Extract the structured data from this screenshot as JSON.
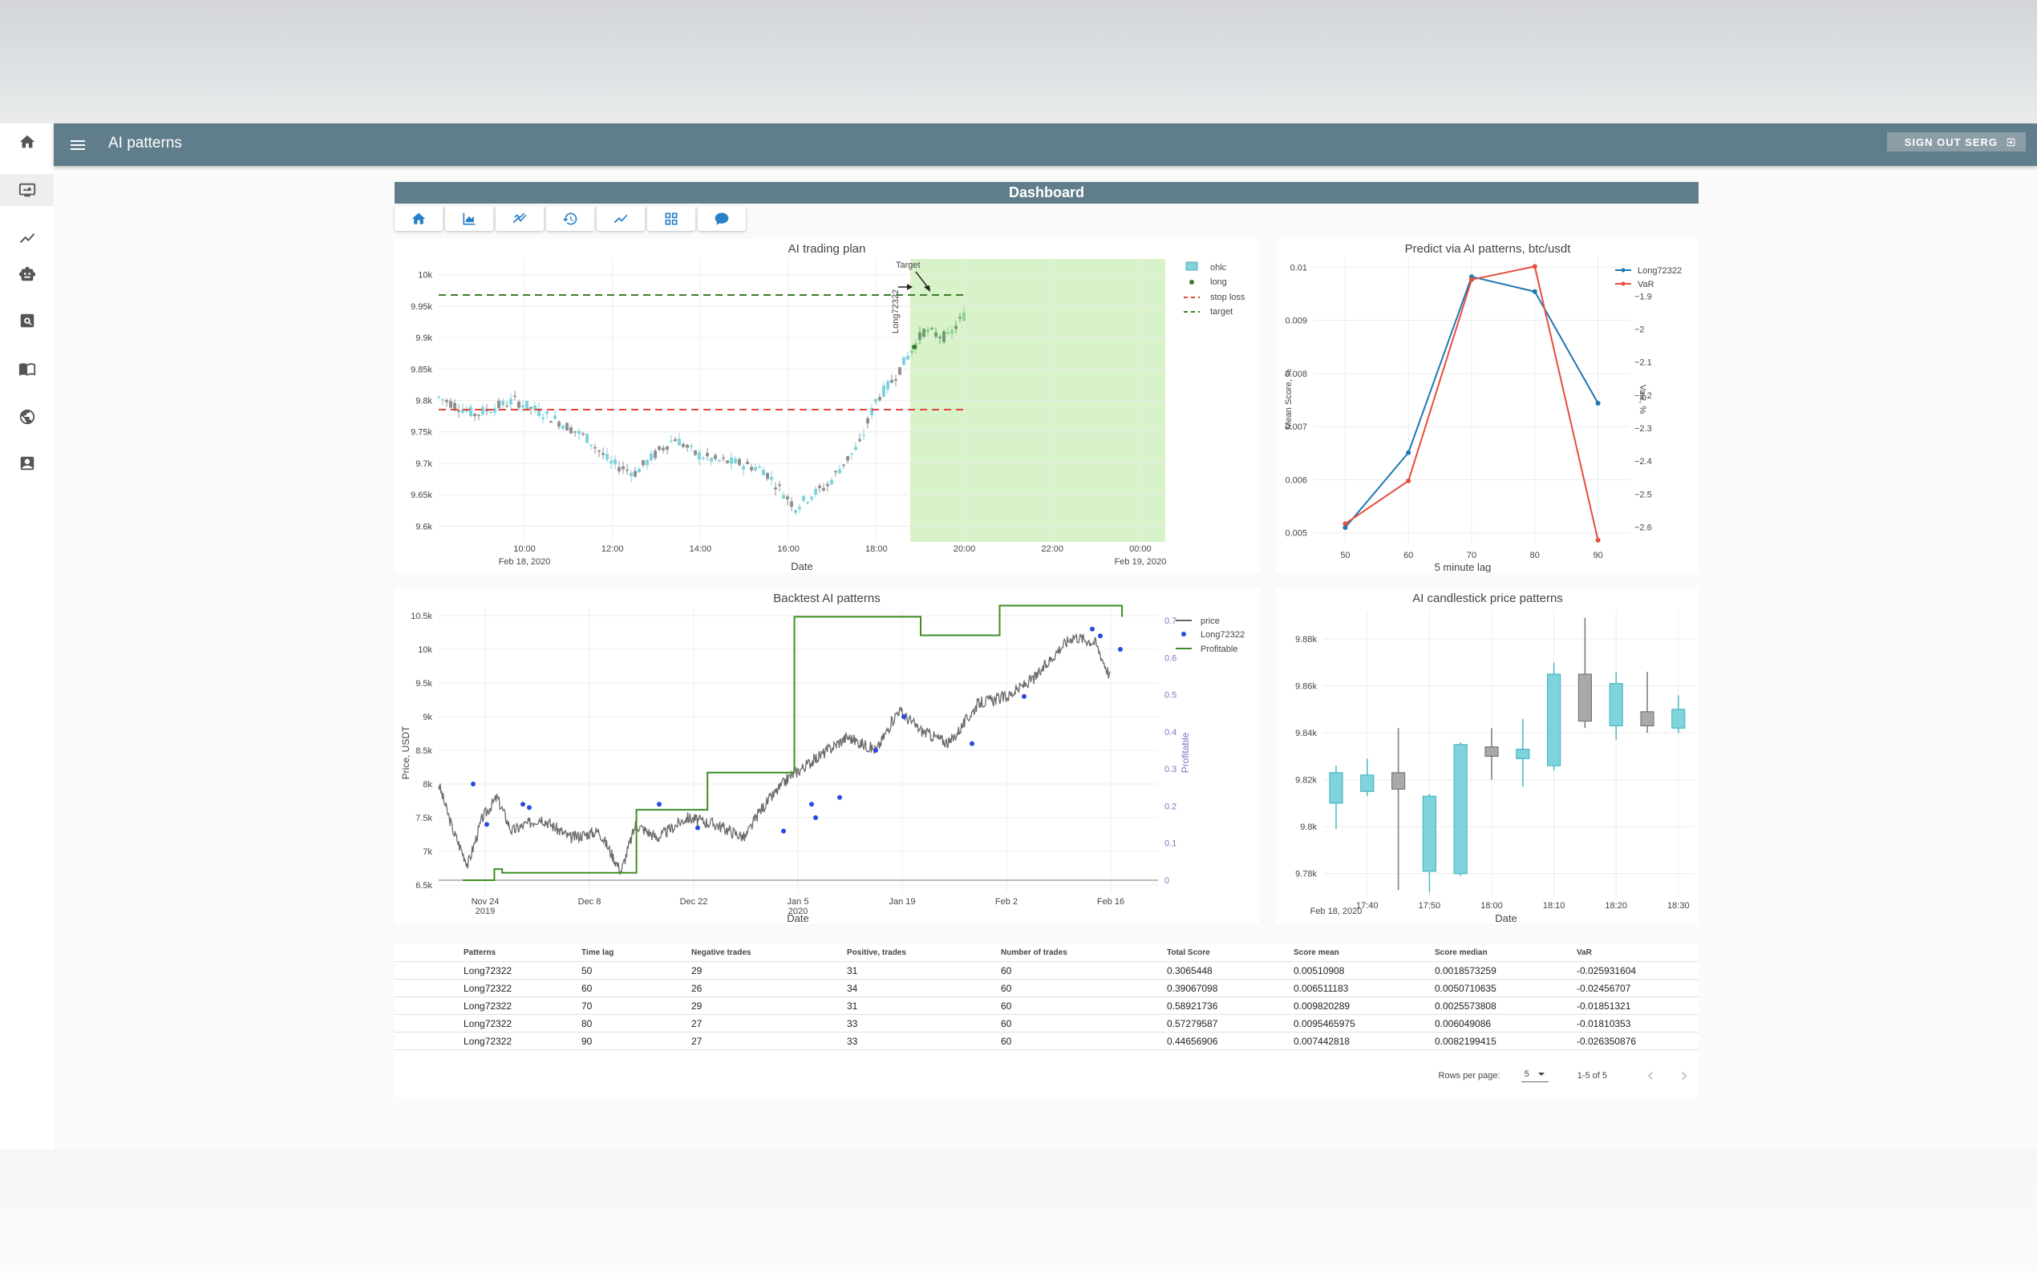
{
  "app": {
    "title": "AI patterns",
    "signout_label": "SIGN OUT SERG"
  },
  "rail": {
    "items": [
      "home-icon",
      "monitor-icon",
      "chart-icon",
      "robot-icon",
      "search-icon",
      "book-icon",
      "face-icon",
      "account-icon"
    ]
  },
  "dashboard": {
    "title": "Dashboard"
  },
  "toolbar": {
    "icons": [
      "home-icon",
      "area-chart-icon",
      "trend-icon",
      "history-icon",
      "line-chart-icon",
      "grid-icon",
      "chat-icon"
    ]
  },
  "colors": {
    "appbar": "#607d8b",
    "accent": "#2a7fc8",
    "bull": "#7fd3dd",
    "bear": "#a9a9a9",
    "target_zone": "#d8f2c9"
  },
  "charts": {
    "plan": {
      "title": "AI trading plan",
      "xlabel": "Date",
      "xticks": [
        "10:00",
        "12:00",
        "14:00",
        "16:00",
        "18:00",
        "20:00",
        "22:00",
        "00:00"
      ],
      "xsub": [
        "Feb 18, 2020",
        "Feb 19, 2020"
      ],
      "yticks": [
        "10k",
        "9.95k",
        "9.9k",
        "9.85k",
        "9.8k",
        "9.75k",
        "9.7k",
        "9.65k",
        "9.6k"
      ],
      "legend": [
        "ohlc",
        "long",
        "stop loss",
        "target"
      ],
      "annot_target": "Target",
      "annot_long": "Long72322"
    },
    "predict": {
      "title": "Predict via AI patterns, btc/usdt",
      "xlabel": "5 minute lag",
      "ylabel_left": "Mean Score, %",
      "ylabel_right": "VaR, %",
      "legend": [
        "Long72322",
        "VaR"
      ]
    },
    "backtest": {
      "title": "Backtest AI patterns",
      "xlabel": "Date",
      "ylabel_left": "Price, USDT",
      "ylabel_right": "Profitable",
      "xticks": [
        "Nov 24",
        "Dec 8",
        "Dec 22",
        "Jan 5",
        "Jan 19",
        "Feb 2",
        "Feb 16"
      ],
      "xsub": [
        "2019",
        "2020"
      ],
      "yticks": [
        "10.5k",
        "10k",
        "9.5k",
        "9k",
        "8.5k",
        "8k",
        "7.5k",
        "7k",
        "6.5k"
      ],
      "yticks_right": [
        "0.7",
        "0.6",
        "0.5",
        "0.4",
        "0.3",
        "0.2",
        "0.1",
        "0"
      ],
      "legend": [
        "price",
        "Long72322",
        "Profitable"
      ]
    },
    "patterns": {
      "title": "AI candlestick price patterns",
      "xlabel": "Date",
      "xticks": [
        "17:40",
        "17:50",
        "18:00",
        "18:10",
        "18:20",
        "18:30"
      ],
      "xsub": "Feb 18, 2020",
      "yticks": [
        "9.88k",
        "9.86k",
        "9.84k",
        "9.82k",
        "9.8k",
        "9.78k"
      ]
    }
  },
  "chart_data": [
    {
      "type": "line",
      "title": "Predict via AI patterns, btc/usdt",
      "xlabel": "5 minute lag",
      "x": [
        50,
        60,
        70,
        80,
        90
      ],
      "series": [
        {
          "name": "Long72322",
          "axis": "left",
          "color": "#1f77b4",
          "values": [
            0.0051,
            0.00651,
            0.00982,
            0.00954,
            0.00744
          ]
        },
        {
          "name": "VaR",
          "axis": "right",
          "color": "#e74c3c",
          "values": [
            -2.59,
            -2.46,
            -1.85,
            -1.81,
            -2.64
          ]
        }
      ],
      "yticks_left": [
        0.005,
        0.006,
        0.007,
        0.008,
        0.009,
        0.01
      ],
      "yticks_right": [
        -2.6,
        -2.5,
        -2.4,
        -2.3,
        -2.2,
        -2.1,
        -2,
        -1.9
      ],
      "ylim_left": [
        0.0048,
        0.0102
      ],
      "ylim_right": [
        -2.65,
        -1.78
      ]
    },
    {
      "type": "candlestick",
      "title": "AI candlestick price patterns",
      "x": [
        "17:35",
        "17:40",
        "17:45",
        "17:50",
        "17:55",
        "18:00",
        "18:05",
        "18:10",
        "18:15",
        "18:20",
        "18:25",
        "18:30",
        "18:35"
      ],
      "open": [
        9810,
        9815,
        9823,
        9781,
        9780,
        9834,
        9829,
        9826,
        9865,
        9843,
        9849,
        9842,
        9851
      ],
      "close": [
        9823,
        9822,
        9816,
        9813,
        9835,
        9830,
        9833,
        9865,
        9845,
        9861,
        9843,
        9850,
        9871
      ],
      "high": [
        9826,
        9829,
        9842,
        9814,
        9836,
        9842,
        9846,
        9870,
        9889,
        9866,
        9866,
        9856,
        9876
      ],
      "low": [
        9799,
        9813,
        9773,
        9772,
        9779,
        9820,
        9817,
        9824,
        9842,
        9837,
        9840,
        9840,
        9840
      ],
      "ylim": [
        9770,
        9892
      ]
    },
    {
      "type": "line",
      "title": "Backtest AI patterns",
      "series": [
        {
          "name": "Profitable",
          "axis": "right",
          "color": "#3e8e23",
          "x_days": [
            0,
            3,
            4,
            5,
            6,
            21,
            22,
            31,
            41,
            42,
            48,
            50,
            58,
            68,
            74,
            76,
            79,
            83,
            83.5
          ],
          "values": [
            0.0,
            0.0,
            0.03,
            0.02,
            0.02,
            0.02,
            0.19,
            0.29,
            0.29,
            0.71,
            0.71,
            0.71,
            0.66,
            0.74,
            0.74,
            0.74,
            0.74,
            0.74,
            0.71
          ]
        }
      ],
      "ylim_left": [
        6450,
        10600
      ],
      "ylim_right": [
        0,
        0.72
      ],
      "x_start": "Nov 20, 2019"
    },
    {
      "type": "candlestick",
      "title": "AI trading plan",
      "stop_loss": 9779,
      "target": 9977,
      "ylim": [
        9575,
        10025
      ]
    }
  ],
  "table": {
    "headers": [
      "Patterns",
      "Time lag",
      "Negative trades",
      "Positive, trades",
      "Number of trades",
      "Total Score",
      "Score mean",
      "Score median",
      "VaR"
    ],
    "rows": [
      [
        "Long72322",
        "50",
        "29",
        "31",
        "60",
        "0.3065448",
        "0.00510908",
        "0.0018573259",
        "-0.025931604"
      ],
      [
        "Long72322",
        "60",
        "26",
        "34",
        "60",
        "0.39067098",
        "0.006511183",
        "0.0050710635",
        "-0.02456707"
      ],
      [
        "Long72322",
        "70",
        "29",
        "31",
        "60",
        "0.58921736",
        "0.009820289",
        "0.0025573808",
        "-0.01851321"
      ],
      [
        "Long72322",
        "80",
        "27",
        "33",
        "60",
        "0.57279587",
        "0.0095465975",
        "0.006049086",
        "-0.01810353"
      ],
      [
        "Long72322",
        "90",
        "27",
        "33",
        "60",
        "0.44656906",
        "0.007442818",
        "0.0082199415",
        "-0.026350876"
      ]
    ],
    "rows_per_page_label": "Rows per page:",
    "rows_per_page": "5",
    "range": "1-5 of 5"
  }
}
